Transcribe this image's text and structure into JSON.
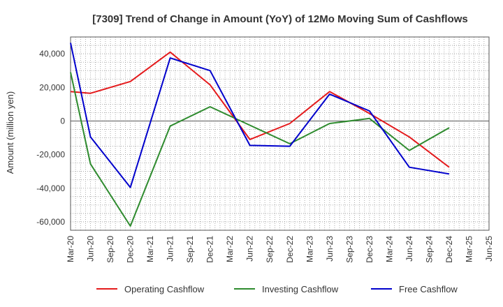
{
  "chart_data": {
    "type": "line",
    "title": "[7309]  Trend of Change in Amount (YoY) of 12Mo Moving Sum of Cashflows",
    "ylabel": "Amount (million yen)",
    "xlabel": "",
    "ylim": [
      -65000,
      50000
    ],
    "yticks": [
      40000,
      20000,
      0,
      -20000,
      -40000,
      -60000
    ],
    "ytick_labels": [
      "40,000",
      "20,000",
      "0",
      "-20,000",
      "-40,000",
      "-60,000"
    ],
    "categories": [
      "Mar-20",
      "Jun-20",
      "Sep-20",
      "Dec-20",
      "Mar-21",
      "Jun-21",
      "Sep-21",
      "Dec-21",
      "Mar-22",
      "Jun-22",
      "Sep-22",
      "Dec-22",
      "Mar-23",
      "Jun-23",
      "Sep-23",
      "Dec-23",
      "Mar-24",
      "Jun-24",
      "Sep-24",
      "Dec-24",
      "Mar-25",
      "Jun-25"
    ],
    "grid": true,
    "legend_position": "bottom",
    "series": [
      {
        "name": "Operating Cashflow",
        "color": "#e41a1c",
        "values": [
          17500,
          16500,
          null,
          23500,
          null,
          41000,
          null,
          21500,
          null,
          -11000,
          null,
          -1500,
          null,
          17500,
          null,
          4500,
          null,
          -9500,
          null,
          -27500,
          null,
          null
        ]
      },
      {
        "name": "Investing Cashflow",
        "color": "#2e8b2e",
        "values": [
          29000,
          -25500,
          null,
          -62500,
          null,
          -3000,
          null,
          8500,
          null,
          -2500,
          null,
          -13500,
          null,
          -1500,
          null,
          1500,
          null,
          -17500,
          null,
          -4000,
          null,
          null
        ]
      },
      {
        "name": "Free Cashflow",
        "color": "#0000cc",
        "values": [
          46500,
          -9500,
          null,
          -39500,
          null,
          37500,
          null,
          30000,
          null,
          -14500,
          null,
          -15000,
          null,
          16000,
          null,
          6000,
          null,
          -27500,
          null,
          -31500,
          null,
          null
        ]
      }
    ]
  }
}
